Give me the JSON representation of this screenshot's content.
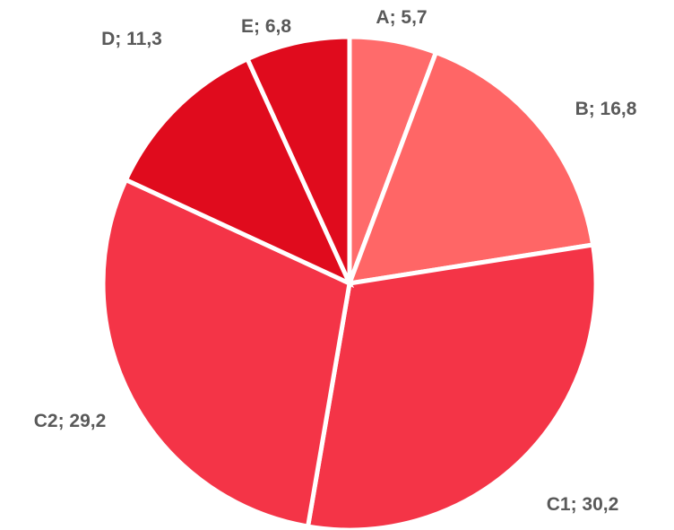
{
  "chart_data": {
    "type": "pie",
    "categories": [
      "A",
      "B",
      "C1",
      "C2",
      "D",
      "E"
    ],
    "values": [
      5.7,
      16.8,
      30.2,
      29.2,
      11.3,
      6.8
    ],
    "labels": [
      "A; 5,7",
      "B; 16,8",
      "C1; 30,2",
      "C2; 29,2",
      "D; 11,3",
      "E; 6,8"
    ],
    "colors": [
      "#ff6b6b",
      "#ff6666",
      "#f43447",
      "#f43447",
      "#e00b1d",
      "#e00b1d"
    ],
    "start_angle_deg": 0,
    "direction": "clockwise",
    "legend": "none",
    "title": ""
  }
}
